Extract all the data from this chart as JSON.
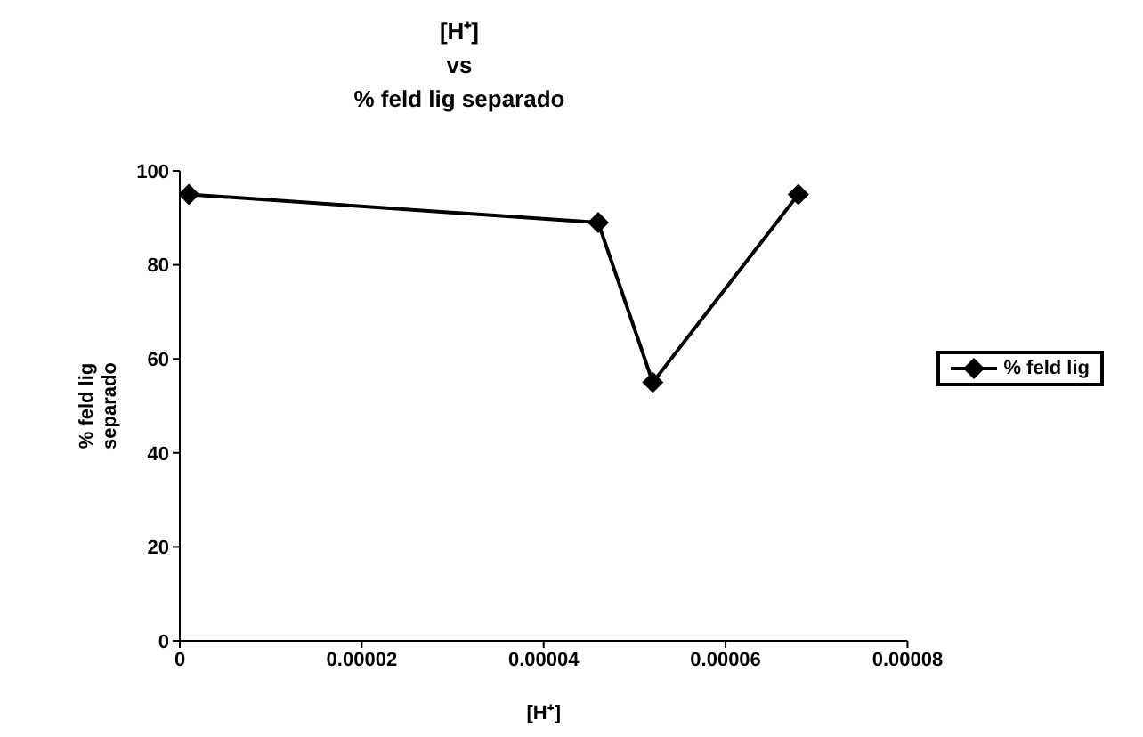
{
  "chart_data": {
    "type": "line",
    "title": "[H⁺]\nvs\n% feld lig separado",
    "xlabel": "[H⁺]",
    "ylabel": "% feld lig separado",
    "x": [
      1e-06,
      4.6e-05,
      5.2e-05,
      6.8e-05
    ],
    "series": [
      {
        "name": "% feld lig",
        "color": "#000000",
        "values": [
          95,
          89,
          55,
          95
        ]
      }
    ],
    "xlim": [
      0,
      8e-05
    ],
    "xticks": [
      0,
      {
        "value": 2e-05,
        "label": "0.00002"
      },
      {
        "value": 4e-05,
        "label": "0.00004"
      },
      {
        "value": 6e-05,
        "label": "0.00006"
      },
      {
        "value": 8e-05,
        "label": "0.00008"
      }
    ],
    "ylim": [
      0,
      100
    ],
    "yticks": [
      0,
      20,
      40,
      60,
      80,
      100
    ],
    "grid": false,
    "legend": "right",
    "marker": "diamond",
    "line_style": "solid"
  }
}
